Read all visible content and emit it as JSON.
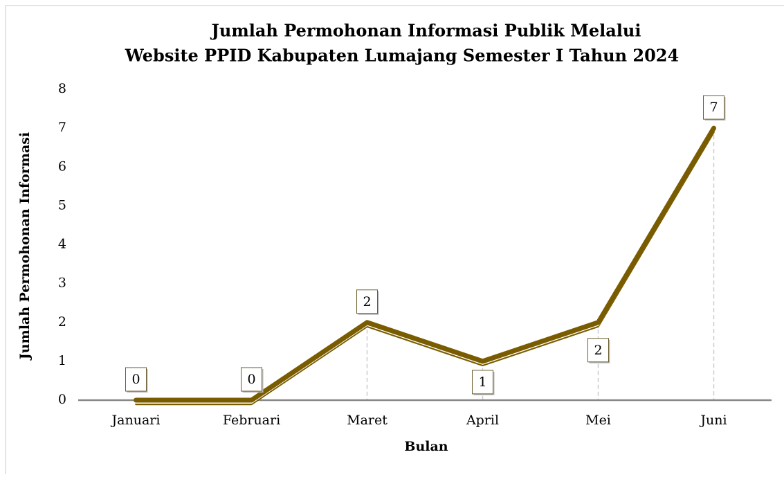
{
  "chart_data": {
    "type": "line",
    "title": [
      "Jumlah Permohonan Informasi Publik Melalui",
      "Website PPID Kabupaten Lumajang Semester I Tahun 2024"
    ],
    "x_label": "Bulan",
    "y_label": "Jumlah Permohonan Informasi",
    "categories": [
      "Januari",
      "Februari",
      "Maret",
      "April",
      "Mei",
      "Juni"
    ],
    "values": [
      0,
      0,
      2,
      1,
      2,
      7
    ],
    "color": "#7a5c00",
    "ylim": [
      0,
      8
    ],
    "yticks": [
      0,
      1,
      2,
      3,
      4,
      5,
      6,
      7,
      8
    ],
    "grid": false
  }
}
